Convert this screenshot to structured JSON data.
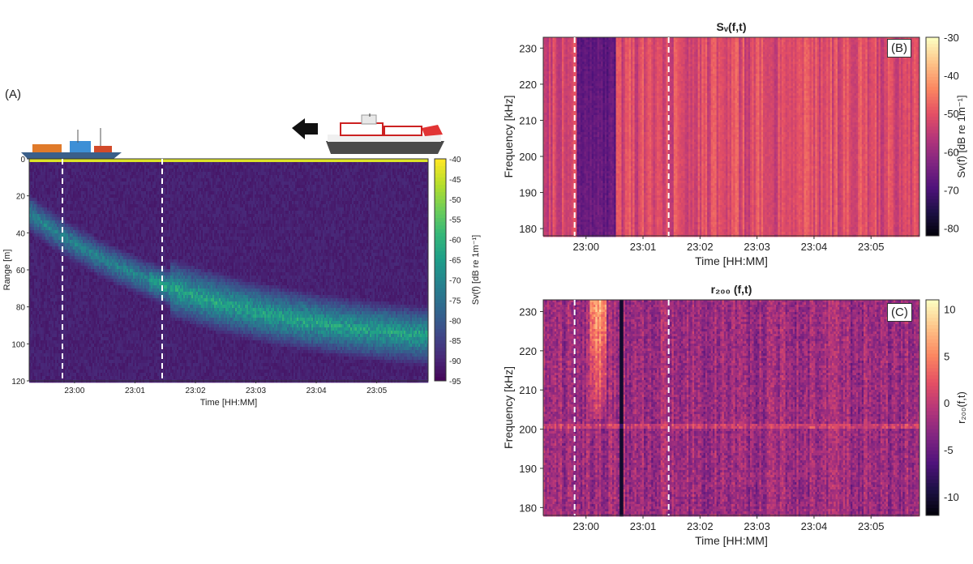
{
  "panels": {
    "a_label": "(A)",
    "b_label": "(B)",
    "c_label": "(C)"
  },
  "chart_data": [
    {
      "id": "A",
      "type": "heatmap",
      "title": "",
      "xlabel": "Time [HH:MM]",
      "ylabel": "Range [m]",
      "x_ticks": [
        "23:00",
        "23:01",
        "23:02",
        "23:03",
        "23:04",
        "23:05"
      ],
      "y_ticks": [
        0,
        20,
        40,
        60,
        80,
        100,
        120
      ],
      "ylim": [
        0,
        120
      ],
      "y_reversed": true,
      "colorbar": {
        "label": "Sv(f) [dB re 1m⁻¹]",
        "range": [
          -95,
          -40
        ],
        "ticks": [
          -40,
          -45,
          -50,
          -55,
          -60,
          -65,
          -70,
          -75,
          -80,
          -85,
          -90,
          -95
        ],
        "colormap": "viridis"
      },
      "dashed_lines_at": [
        "22:59.8",
        "23:01.45"
      ],
      "features": "Fish school echo descending from ~25 m to ~105 m range over time; high Sv at surface band (0 m)."
    },
    {
      "id": "B",
      "type": "heatmap",
      "title": "Sᵥ(f,t)",
      "xlabel": "Time [HH:MM]",
      "ylabel": "Frequency [kHz]",
      "x_ticks": [
        "23:00",
        "23:01",
        "23:02",
        "23:03",
        "23:04",
        "23:05"
      ],
      "y_ticks": [
        180,
        190,
        200,
        210,
        220,
        230
      ],
      "ylim": [
        178,
        233
      ],
      "colorbar": {
        "label": "Sv(f) [dB re 1m⁻¹]",
        "range": [
          -82,
          -30
        ],
        "ticks": [
          -30,
          -40,
          -50,
          -60,
          -70,
          -80
        ],
        "colormap": "magma"
      },
      "dashed_lines_at": [
        "22:59.8",
        "23:01.45"
      ]
    },
    {
      "id": "C",
      "type": "heatmap",
      "title": "r₂₀₀ (f,t)",
      "xlabel": "Time [HH:MM]",
      "ylabel": "Frequency [kHz]",
      "x_ticks": [
        "23:00",
        "23:01",
        "23:02",
        "23:03",
        "23:04",
        "23:05"
      ],
      "y_ticks": [
        180,
        190,
        200,
        210,
        220,
        230
      ],
      "ylim": [
        178,
        233
      ],
      "colorbar": {
        "label": "r₂₀₀(f,t)",
        "range": [
          -12,
          11
        ],
        "ticks": [
          10,
          5,
          0,
          -5,
          -10
        ],
        "colormap": "magma"
      },
      "dashed_lines_at": [
        "22:59.8",
        "23:01.45"
      ]
    }
  ],
  "colors": {
    "arrow": "#111111",
    "dashed_line": "#ffffff",
    "surface_band": "#e8ef2a"
  }
}
